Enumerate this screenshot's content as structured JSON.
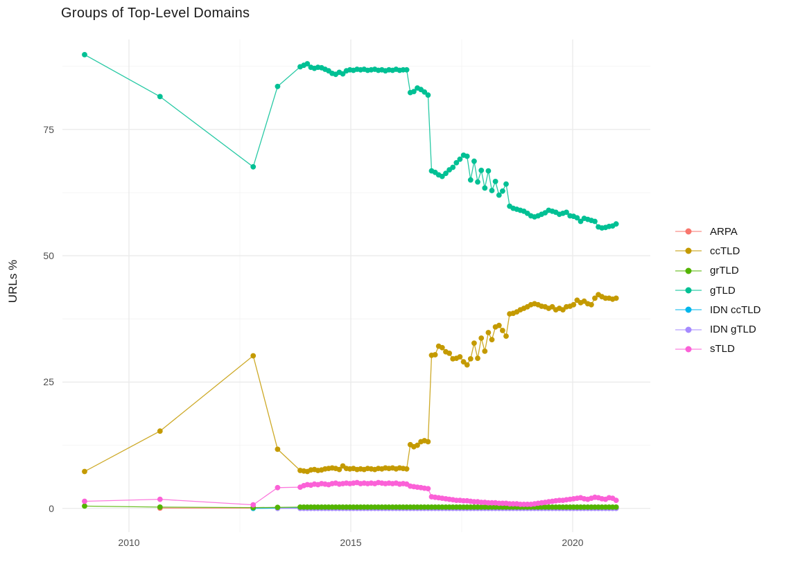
{
  "chart_data": {
    "type": "scatter-line",
    "title": "Groups of Top-Level Domains",
    "xlabel": "",
    "ylabel": "URLs %",
    "grid": true,
    "legend_position": "right",
    "x_ticks": [
      "2010",
      "2015",
      "2020"
    ],
    "x_tick_years": [
      2010,
      2015,
      2020
    ],
    "y_ticks": [
      "0",
      "25",
      "50",
      "75"
    ],
    "y_tick_values": [
      0,
      25,
      50,
      75
    ],
    "x_minor": [
      2012.5,
      2017.5
    ],
    "y_minor": [
      12.5,
      37.5,
      62.5,
      87.5
    ],
    "xlim": [
      2008.5,
      2021.75
    ],
    "ylim": [
      -4.7,
      92.8
    ],
    "dense_x": {
      "start": 2013.86,
      "step": 0.08,
      "count": 90
    },
    "series": [
      {
        "name": "ARPA",
        "color": "#F8766D",
        "z": 0,
        "early_points": [
          [
            2010.7,
            0.05
          ],
          [
            2012.8,
            0.05
          ]
        ],
        "dense_y_const": 0.05
      },
      {
        "name": "ccTLD",
        "color": "#C49A00",
        "z": 5,
        "early_points": [
          [
            2009.0,
            7.3
          ],
          [
            2010.7,
            15.3
          ],
          [
            2012.8,
            30.2
          ],
          [
            2013.35,
            11.7
          ]
        ],
        "dense_y": [
          7.5,
          7.4,
          7.3,
          7.6,
          7.7,
          7.5,
          7.6,
          7.8,
          7.9,
          8.0,
          7.9,
          7.7,
          8.4,
          7.9,
          7.8,
          7.9,
          7.7,
          7.8,
          7.7,
          7.9,
          7.8,
          7.7,
          7.9,
          7.8,
          8.0,
          7.9,
          8.0,
          7.8,
          8.0,
          7.9,
          7.8,
          12.6,
          12.2,
          12.5,
          13.2,
          13.4,
          13.2,
          30.3,
          30.4,
          32.1,
          31.8,
          31.0,
          30.7,
          29.6,
          29.7,
          30.0,
          29.0,
          28.4,
          29.6,
          32.7,
          29.7,
          33.7,
          31.1,
          34.8,
          33.4,
          35.9,
          36.2,
          35.2,
          34.1,
          38.5,
          38.6,
          38.9,
          39.3,
          39.6,
          39.9,
          40.3,
          40.5,
          40.3,
          40.0,
          39.9,
          39.6,
          39.9,
          39.3,
          39.6,
          39.3,
          39.9,
          40.0,
          40.3,
          41.2,
          40.7,
          41.0,
          40.5,
          40.3,
          41.6,
          42.3,
          41.9,
          41.6,
          41.6,
          41.4,
          41.6
        ]
      },
      {
        "name": "grTLD",
        "color": "#53B400",
        "z": 3,
        "early_points": [
          [
            2009.0,
            0.45
          ],
          [
            2010.7,
            0.25
          ],
          [
            2012.8,
            0.15
          ],
          [
            2013.35,
            0.2
          ]
        ],
        "dense_y_const": 0.25
      },
      {
        "name": "gTLD",
        "color": "#00C094",
        "z": 4,
        "early_points": [
          [
            2009.0,
            89.8
          ],
          [
            2010.7,
            81.5
          ],
          [
            2012.8,
            67.6
          ],
          [
            2013.35,
            83.5
          ]
        ],
        "dense_y": [
          87.4,
          87.7,
          88.0,
          87.3,
          87.1,
          87.3,
          87.2,
          86.9,
          86.6,
          86.1,
          85.9,
          86.3,
          86.0,
          86.6,
          86.8,
          86.7,
          86.9,
          86.8,
          86.9,
          86.7,
          86.8,
          86.9,
          86.7,
          86.8,
          86.6,
          86.8,
          86.7,
          86.9,
          86.7,
          86.8,
          86.8,
          82.3,
          82.5,
          83.2,
          82.9,
          82.4,
          81.8,
          66.8,
          66.5,
          66.0,
          65.7,
          66.3,
          67.0,
          67.5,
          68.4,
          69.1,
          69.9,
          69.7,
          65.0,
          68.7,
          64.6,
          66.9,
          63.4,
          66.8,
          62.9,
          64.7,
          62.0,
          62.8,
          64.2,
          59.8,
          59.4,
          59.2,
          59.0,
          58.8,
          58.4,
          57.9,
          57.7,
          57.9,
          58.2,
          58.5,
          59.0,
          58.8,
          58.6,
          58.2,
          58.4,
          58.6,
          57.9,
          57.8,
          57.5,
          56.8,
          57.4,
          57.2,
          57.0,
          56.8,
          55.7,
          55.5,
          55.6,
          55.8,
          55.9,
          56.3
        ]
      },
      {
        "name": "IDN ccTLD",
        "color": "#00B6EB",
        "z": 1,
        "early_points": [
          [
            2012.8,
            0.0
          ],
          [
            2013.35,
            0.05
          ]
        ],
        "dense_y_const": 0.1
      },
      {
        "name": "IDN gTLD",
        "color": "#A58AFF",
        "z": 2,
        "early_points": [
          [
            2013.35,
            0.0
          ]
        ],
        "dense_y_const": 0.0
      },
      {
        "name": "sTLD",
        "color": "#FB61D7",
        "z": 6,
        "early_points": [
          [
            2009.0,
            1.4
          ],
          [
            2010.7,
            1.8
          ],
          [
            2012.8,
            0.7
          ],
          [
            2013.35,
            4.1
          ]
        ],
        "dense_y": [
          4.2,
          4.5,
          4.7,
          4.6,
          4.8,
          4.7,
          4.9,
          4.8,
          4.7,
          4.9,
          5.0,
          4.8,
          4.9,
          5.0,
          4.9,
          5.0,
          5.1,
          4.9,
          5.0,
          4.9,
          5.0,
          4.9,
          5.1,
          5.0,
          4.9,
          5.0,
          4.9,
          5.0,
          4.8,
          4.9,
          4.8,
          4.4,
          4.3,
          4.2,
          4.1,
          4.0,
          3.9,
          2.3,
          2.2,
          2.1,
          2.0,
          1.9,
          1.8,
          1.7,
          1.6,
          1.6,
          1.5,
          1.5,
          1.4,
          1.3,
          1.3,
          1.2,
          1.2,
          1.1,
          1.1,
          1.1,
          1.0,
          1.0,
          1.0,
          0.9,
          0.9,
          0.9,
          0.8,
          0.8,
          0.8,
          0.8,
          0.9,
          1.0,
          1.1,
          1.2,
          1.3,
          1.4,
          1.5,
          1.6,
          1.6,
          1.7,
          1.8,
          1.9,
          2.0,
          2.1,
          1.9,
          1.8,
          2.0,
          2.2,
          2.1,
          1.9,
          1.8,
          2.1,
          2.0,
          1.6
        ]
      }
    ],
    "style": {
      "grid_major_color": "#ebebeb",
      "grid_minor_color": "#f4f4f4",
      "background": "#ffffff",
      "point_radius": 3.9,
      "line_width": 1.3
    }
  }
}
